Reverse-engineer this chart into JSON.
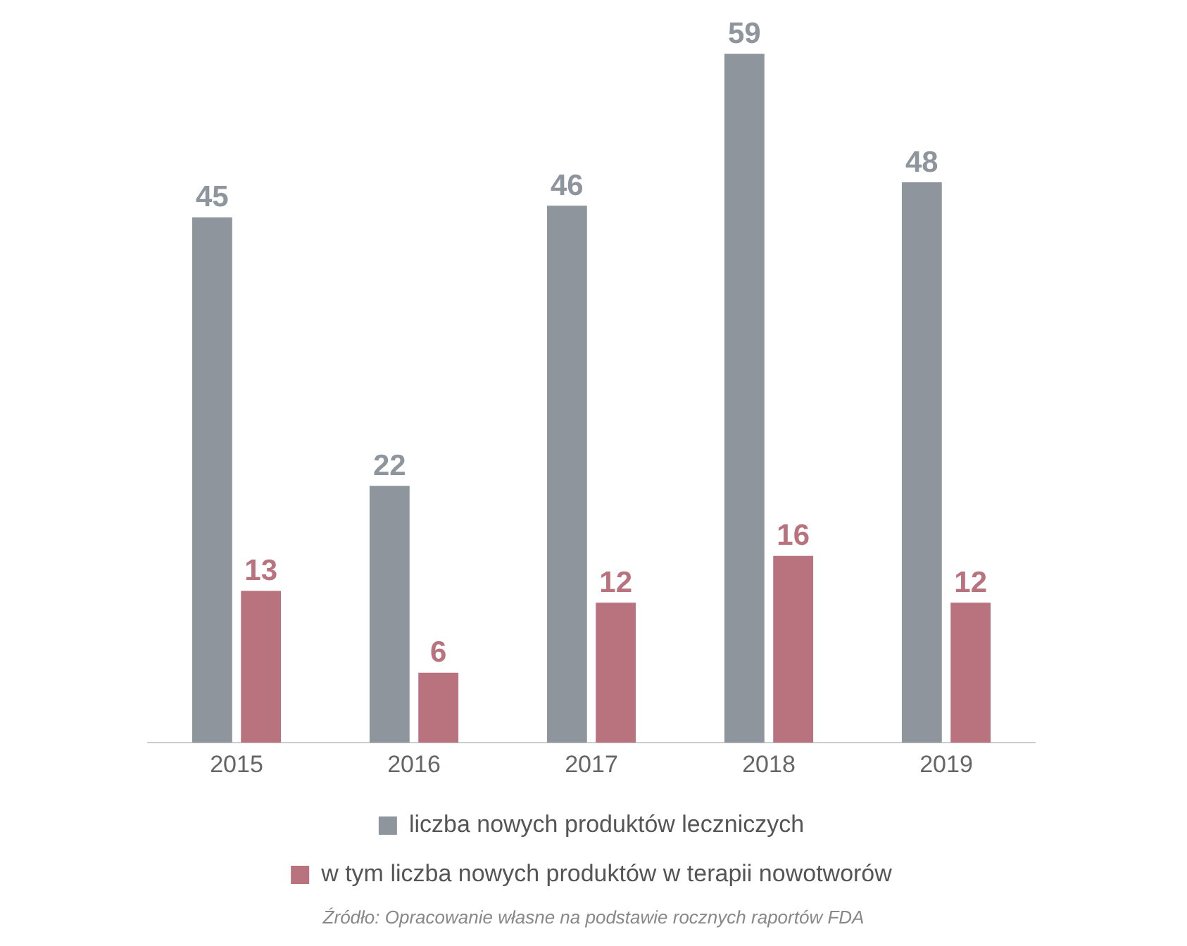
{
  "chart_data": {
    "type": "bar",
    "categories": [
      "2015",
      "2016",
      "2017",
      "2018",
      "2019"
    ],
    "series": [
      {
        "name": "liczba nowych produktów leczniczych",
        "color": "#8e959c",
        "values": [
          45,
          22,
          46,
          59,
          48
        ]
      },
      {
        "name": "w tym liczba nowych produktów w terapii nowotworów",
        "color": "#b8737f",
        "values": [
          13,
          6,
          12,
          16,
          12
        ]
      }
    ],
    "data_labels": true,
    "legend": "bottom",
    "grid": false,
    "tick_labels": "x",
    "annotations": [
      "Źródło: Opracowanie własne na podstawie rocznych raportów FDA"
    ]
  }
}
